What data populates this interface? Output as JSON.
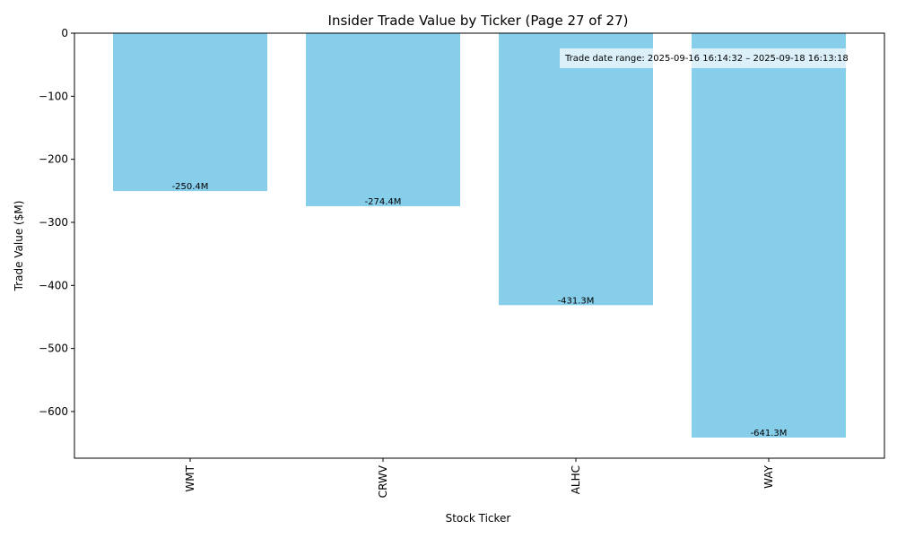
{
  "chart_data": {
    "type": "bar",
    "title": "Insider Trade Value by Ticker (Page 27 of 27)",
    "xlabel": "Stock Ticker",
    "ylabel": "Trade Value ($M)",
    "categories": [
      "WMT",
      "CRWV",
      "ALHC",
      "WAY"
    ],
    "values": [
      -250.4,
      -274.4,
      -431.3,
      -641.3
    ],
    "data_labels": [
      "-250.4M",
      "-274.4M",
      "-431.3M",
      "-641.3M"
    ],
    "ylim": [
      -674,
      0
    ],
    "yticks": [
      0,
      -100,
      -200,
      -300,
      -400,
      -500,
      -600
    ],
    "ytick_labels": [
      "0",
      "−100",
      "−200",
      "−300",
      "−400",
      "−500",
      "−600"
    ],
    "annotation": "Trade date range: 2025-09-16 16:14:32 – 2025-09-18 16:13:18",
    "annotation_placement": "top-right",
    "bar_color": "#87CEEB",
    "grid": false
  }
}
